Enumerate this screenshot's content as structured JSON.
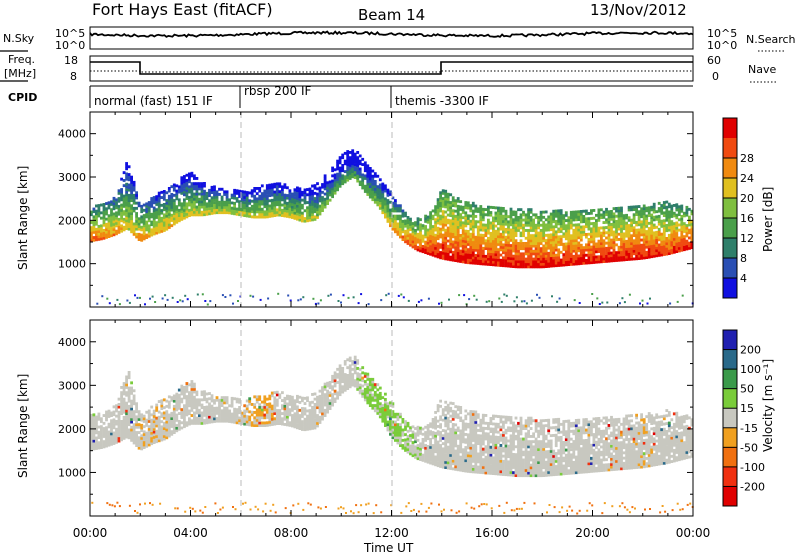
{
  "header": {
    "station": "Fort Hays East (fitACF)",
    "beam": "Beam 14",
    "date": "13/Nov/2012"
  },
  "left_labels": {
    "nsky": "N.Sky",
    "freq_line1": "Freq.",
    "freq_line2": "[MHz]",
    "cpid": "CPID"
  },
  "right_labels": {
    "nsearch": "N.Search",
    "nave": "Nave"
  },
  "noise_axis": {
    "left_ticks": [
      "10^5",
      "10^0"
    ],
    "right_ticks": [
      "10^5",
      "10^0"
    ]
  },
  "freq_axis": {
    "left_ticks": [
      "18",
      "8"
    ],
    "right_ticks": [
      "60",
      "0"
    ]
  },
  "cpid_segments": [
    {
      "label": "normal (fast) 151 IF",
      "start_hour": 0
    },
    {
      "label": "rbsp 200 IF",
      "start_hour": 6
    },
    {
      "label": "themis -3300 IF",
      "start_hour": 12
    }
  ],
  "time_axis": {
    "label": "Time UT",
    "ticks": [
      "00:00",
      "04:00",
      "08:00",
      "12:00",
      "16:00",
      "20:00",
      "00:00"
    ]
  },
  "range_axis": {
    "label": "Slant Range [km]",
    "ticks": [
      "1000",
      "2000",
      "3000",
      "4000"
    ]
  },
  "colorbars": {
    "power": {
      "label": "Power [dB]",
      "ticks": [
        "4",
        "8",
        "12",
        "16",
        "20",
        "24",
        "28"
      ],
      "colors": [
        "#1010e0",
        "#2a4fb4",
        "#2f7f6a",
        "#4a9f4a",
        "#7fbf3f",
        "#e0c020",
        "#f08a10",
        "#f04a10",
        "#e00000"
      ]
    },
    "velocity": {
      "label": "Velocity [m s⁻¹]",
      "ticks": [
        "200",
        "100",
        "50",
        "15",
        "-15",
        "-50",
        "-100",
        "-200"
      ],
      "colors": [
        "#2020b0",
        "#2a6a8a",
        "#3a9a4a",
        "#7acc3a",
        "#c8c8c0",
        "#f0a020",
        "#f07010",
        "#f03010",
        "#e00000"
      ]
    }
  },
  "chart_data": [
    {
      "type": "heatmap",
      "name": "power",
      "x_hours": [
        0,
        0.5,
        1,
        1.5,
        2,
        2.5,
        3,
        3.5,
        4,
        4.5,
        5,
        5.5,
        6,
        6.5,
        7,
        7.5,
        8,
        8.5,
        9,
        9.5,
        10,
        10.5,
        11,
        11.5,
        12,
        12.5,
        13,
        13.5,
        14,
        15,
        16,
        17,
        18,
        19,
        20,
        21,
        22,
        23,
        24
      ],
      "range_low_km": [
        1500,
        1550,
        1650,
        1800,
        1500,
        1650,
        1750,
        1950,
        2100,
        2100,
        2150,
        2150,
        2100,
        2050,
        2050,
        2100,
        2050,
        1950,
        2000,
        2400,
        2800,
        3000,
        2600,
        2300,
        1800,
        1500,
        1300,
        1200,
        1100,
        1000,
        950,
        900,
        900,
        950,
        1000,
        1050,
        1100,
        1200,
        1350
      ],
      "range_high_km": [
        2300,
        2350,
        2500,
        3400,
        2300,
        2500,
        2700,
        2900,
        3100,
        2850,
        2750,
        2700,
        2650,
        2700,
        2800,
        2850,
        2750,
        2700,
        2800,
        3100,
        3500,
        3700,
        3300,
        3000,
        2600,
        2200,
        2000,
        2100,
        2700,
        2400,
        2300,
        2250,
        2200,
        2200,
        2250,
        2250,
        2300,
        2400,
        2250
      ],
      "power_db": [
        24,
        24,
        22,
        18,
        22,
        20,
        20,
        18,
        18,
        18,
        18,
        18,
        18,
        18,
        18,
        18,
        18,
        18,
        16,
        14,
        12,
        12,
        14,
        16,
        20,
        24,
        26,
        28,
        28,
        28,
        28,
        28,
        28,
        28,
        28,
        28,
        28,
        26,
        28
      ],
      "ylim": [
        0,
        4500
      ],
      "xlim": [
        0,
        24
      ]
    },
    {
      "type": "heatmap",
      "name": "velocity",
      "x_hours": [
        0,
        1,
        2,
        3,
        4,
        5,
        6,
        7,
        8,
        9,
        10,
        11,
        12,
        13,
        14,
        16,
        18,
        20,
        22,
        24
      ],
      "velocity_mps": [
        0,
        0,
        -20,
        -20,
        0,
        0,
        -20,
        -30,
        0,
        0,
        0,
        30,
        30,
        20,
        0,
        0,
        0,
        0,
        -20,
        0
      ],
      "ylim": [
        0,
        4500
      ],
      "xlim": [
        0,
        24
      ]
    }
  ]
}
